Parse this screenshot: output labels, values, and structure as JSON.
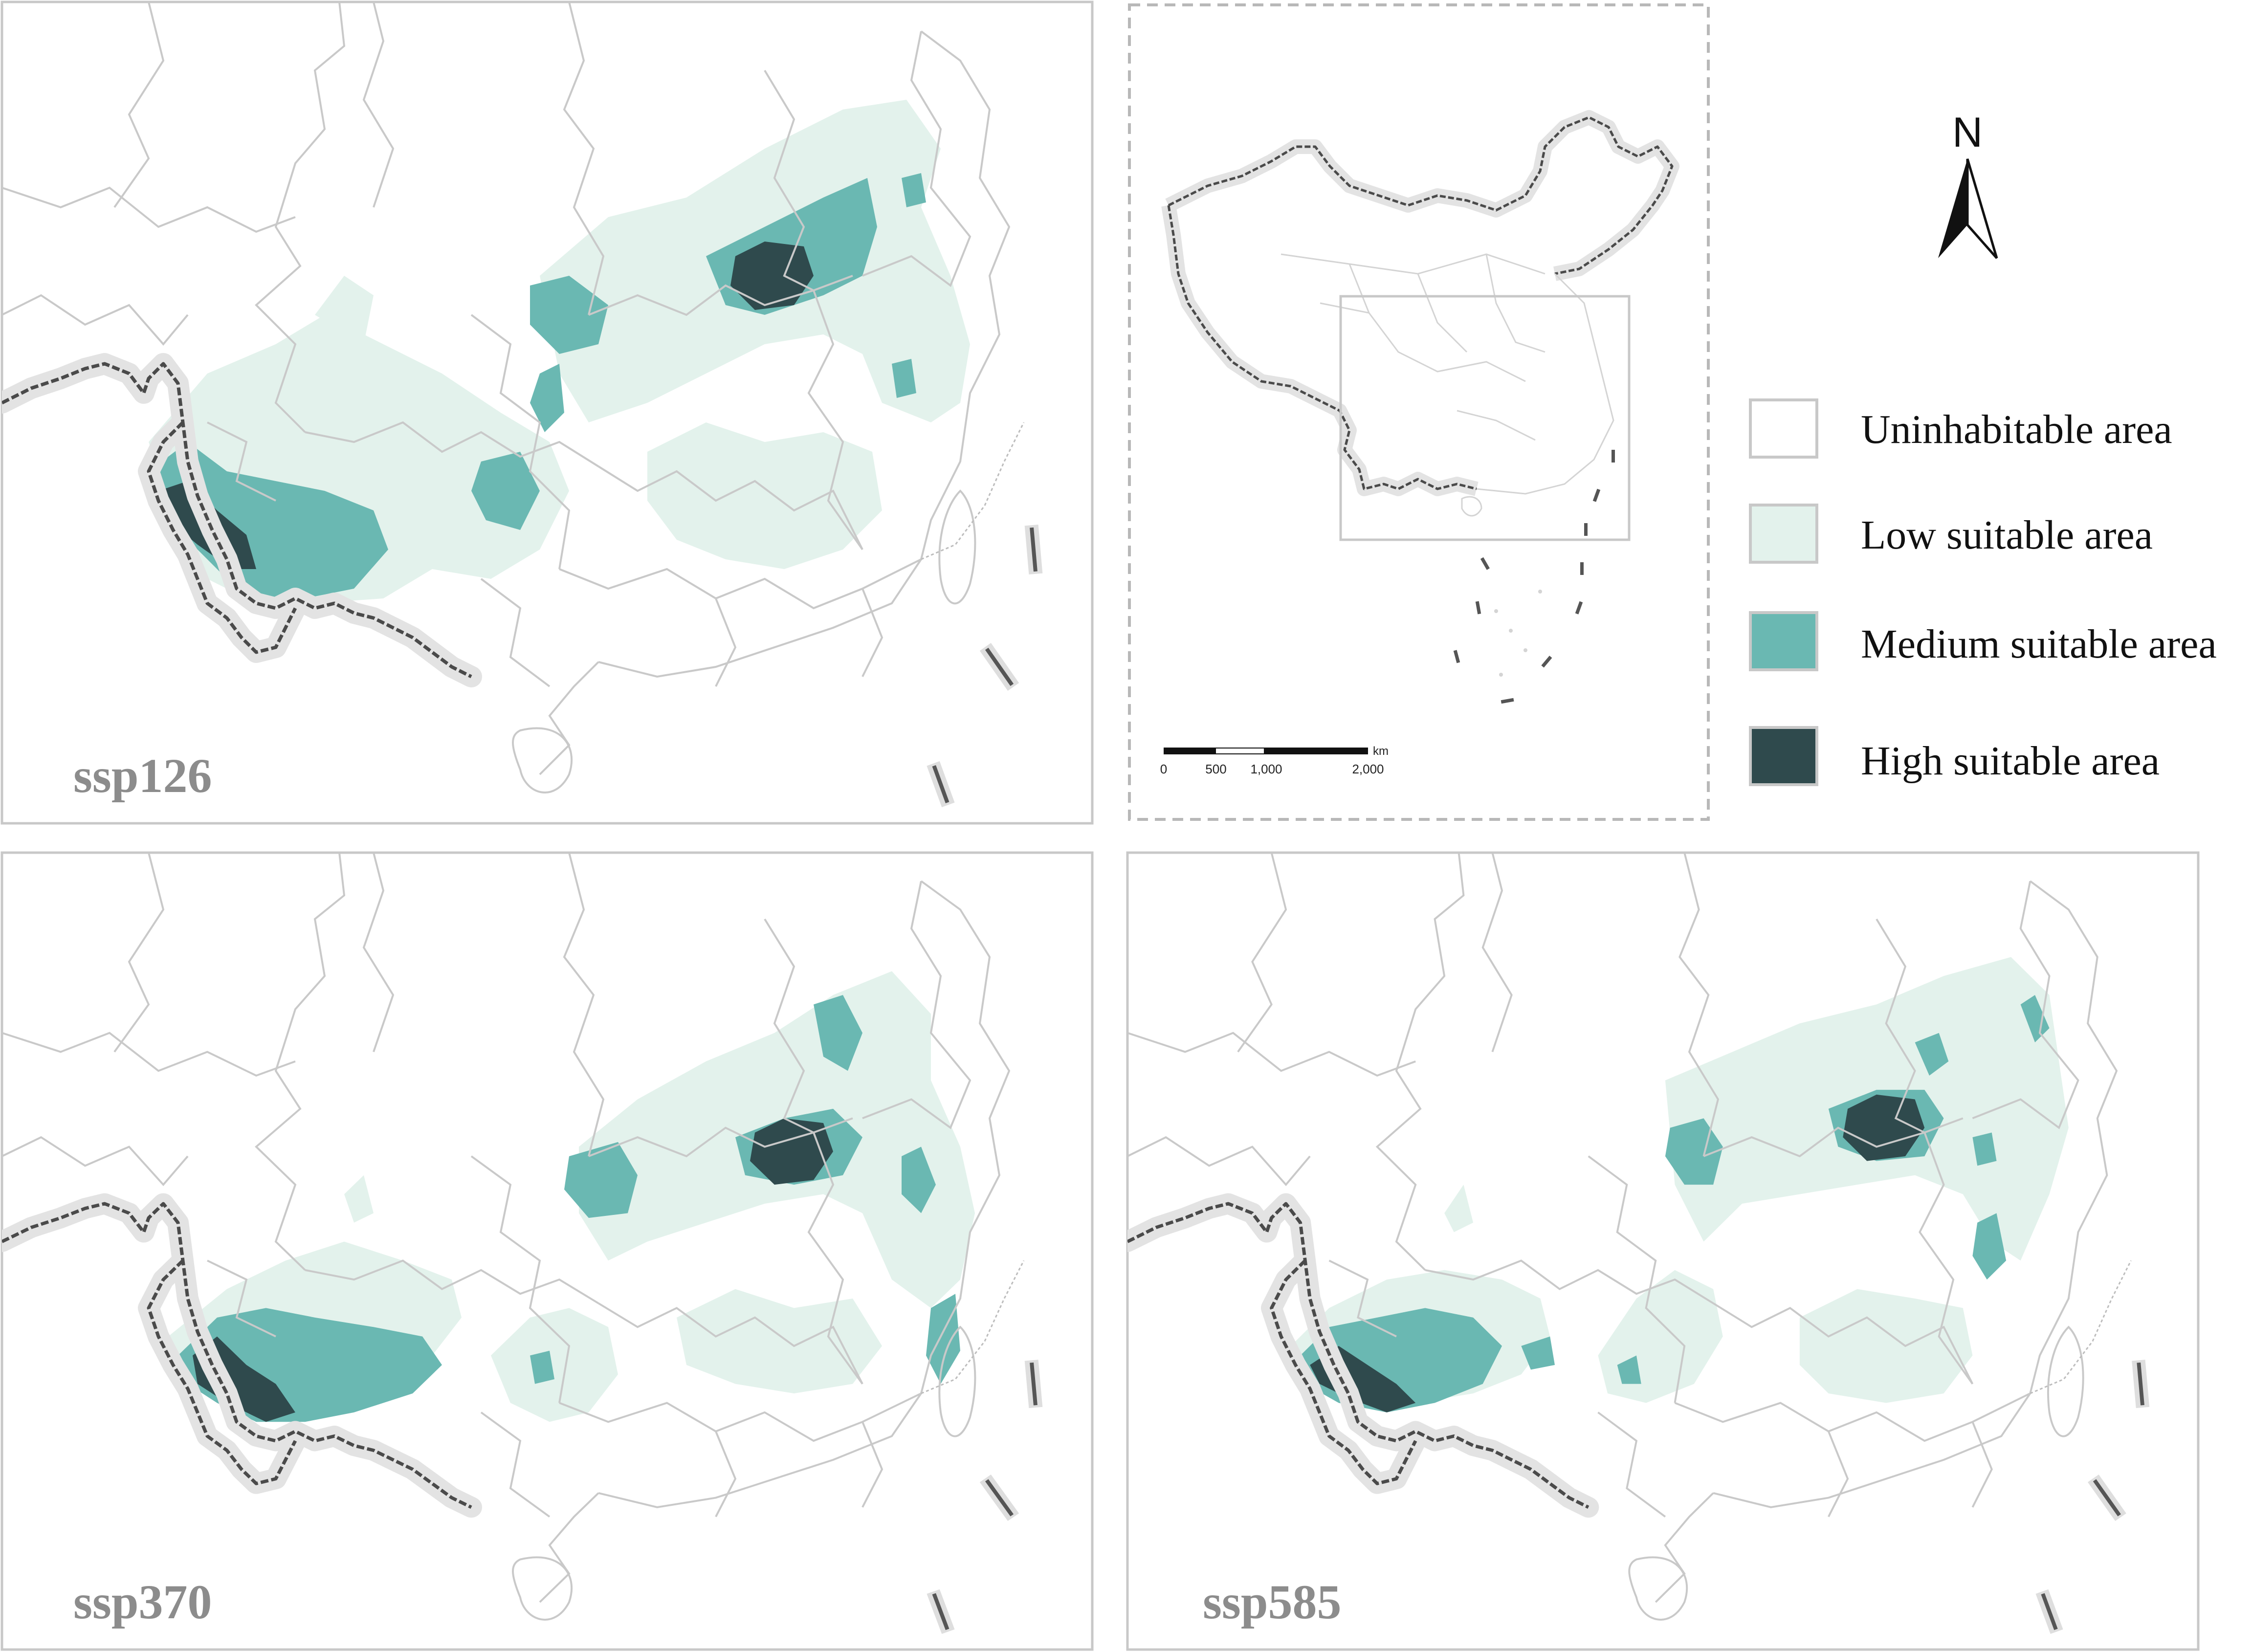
{
  "panels": [
    {
      "id": "ssp126",
      "label": "ssp126"
    },
    {
      "id": "ssp370",
      "label": "ssp370"
    },
    {
      "id": "ssp585",
      "label": "ssp585"
    }
  ],
  "legend": {
    "items": [
      {
        "label": "Uninhabitable area",
        "color": "#ffffff"
      },
      {
        "label": "Low suitable area",
        "color": "#e3f2ec"
      },
      {
        "label": "Medium suitable area",
        "color": "#6ab8b2"
      },
      {
        "label": "High suitable area",
        "color": "#2f4a4d"
      }
    ]
  },
  "north_arrow": {
    "label": "N"
  },
  "scale_bar": {
    "unit": "km",
    "ticks": [
      "0",
      "500",
      "1,000",
      "2,000"
    ]
  },
  "colors": {
    "panel_border": "#c8c8c8",
    "boundary": "#c9c9c9",
    "border_dark": "#4a4a4a",
    "label_grey": "#8c8c8c"
  }
}
